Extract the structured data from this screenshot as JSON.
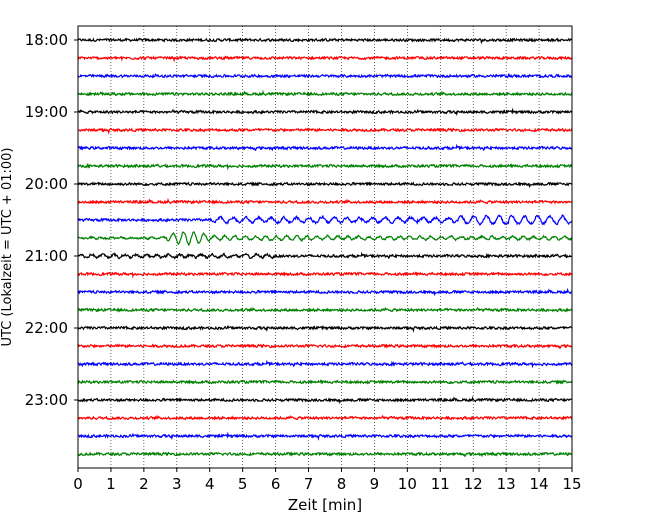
{
  "chart_data": {
    "type": "line",
    "title": "",
    "xlabel": "Zeit  [min]",
    "ylabel": "UTC (Lokalzeit = UTC + 01:00)",
    "xlim": [
      0,
      15
    ],
    "x_ticks": [
      0,
      1,
      2,
      3,
      4,
      5,
      6,
      7,
      8,
      9,
      10,
      11,
      12,
      13,
      14,
      15
    ],
    "y_ticks": [
      "18:00",
      "19:00",
      "20:00",
      "21:00",
      "22:00",
      "23:00"
    ],
    "grid": "vertical dotted lines at each minute",
    "trace_interval_min": 15,
    "trace_colors": [
      "#000000",
      "#ff0000",
      "#0000ff",
      "#008000"
    ],
    "traces": [
      {
        "start": "18:00",
        "color": "#000000"
      },
      {
        "start": "18:15",
        "color": "#ff0000"
      },
      {
        "start": "18:30",
        "color": "#0000ff"
      },
      {
        "start": "18:45",
        "color": "#008000"
      },
      {
        "start": "19:00",
        "color": "#000000"
      },
      {
        "start": "19:15",
        "color": "#ff0000"
      },
      {
        "start": "19:30",
        "color": "#0000ff"
      },
      {
        "start": "19:45",
        "color": "#008000"
      },
      {
        "start": "20:00",
        "color": "#000000"
      },
      {
        "start": "20:15",
        "color": "#ff0000"
      },
      {
        "start": "20:30",
        "color": "#0000ff"
      },
      {
        "start": "20:45",
        "color": "#008000"
      },
      {
        "start": "21:00",
        "color": "#000000"
      },
      {
        "start": "21:15",
        "color": "#ff0000"
      },
      {
        "start": "21:30",
        "color": "#0000ff"
      },
      {
        "start": "21:45",
        "color": "#008000"
      },
      {
        "start": "22:00",
        "color": "#000000"
      },
      {
        "start": "22:15",
        "color": "#ff0000"
      },
      {
        "start": "22:30",
        "color": "#0000ff"
      },
      {
        "start": "22:45",
        "color": "#008000"
      },
      {
        "start": "23:00",
        "color": "#000000"
      },
      {
        "start": "23:15",
        "color": "#ff0000"
      },
      {
        "start": "23:30",
        "color": "#0000ff"
      },
      {
        "start": "23:45",
        "color": "#008000"
      }
    ]
  }
}
